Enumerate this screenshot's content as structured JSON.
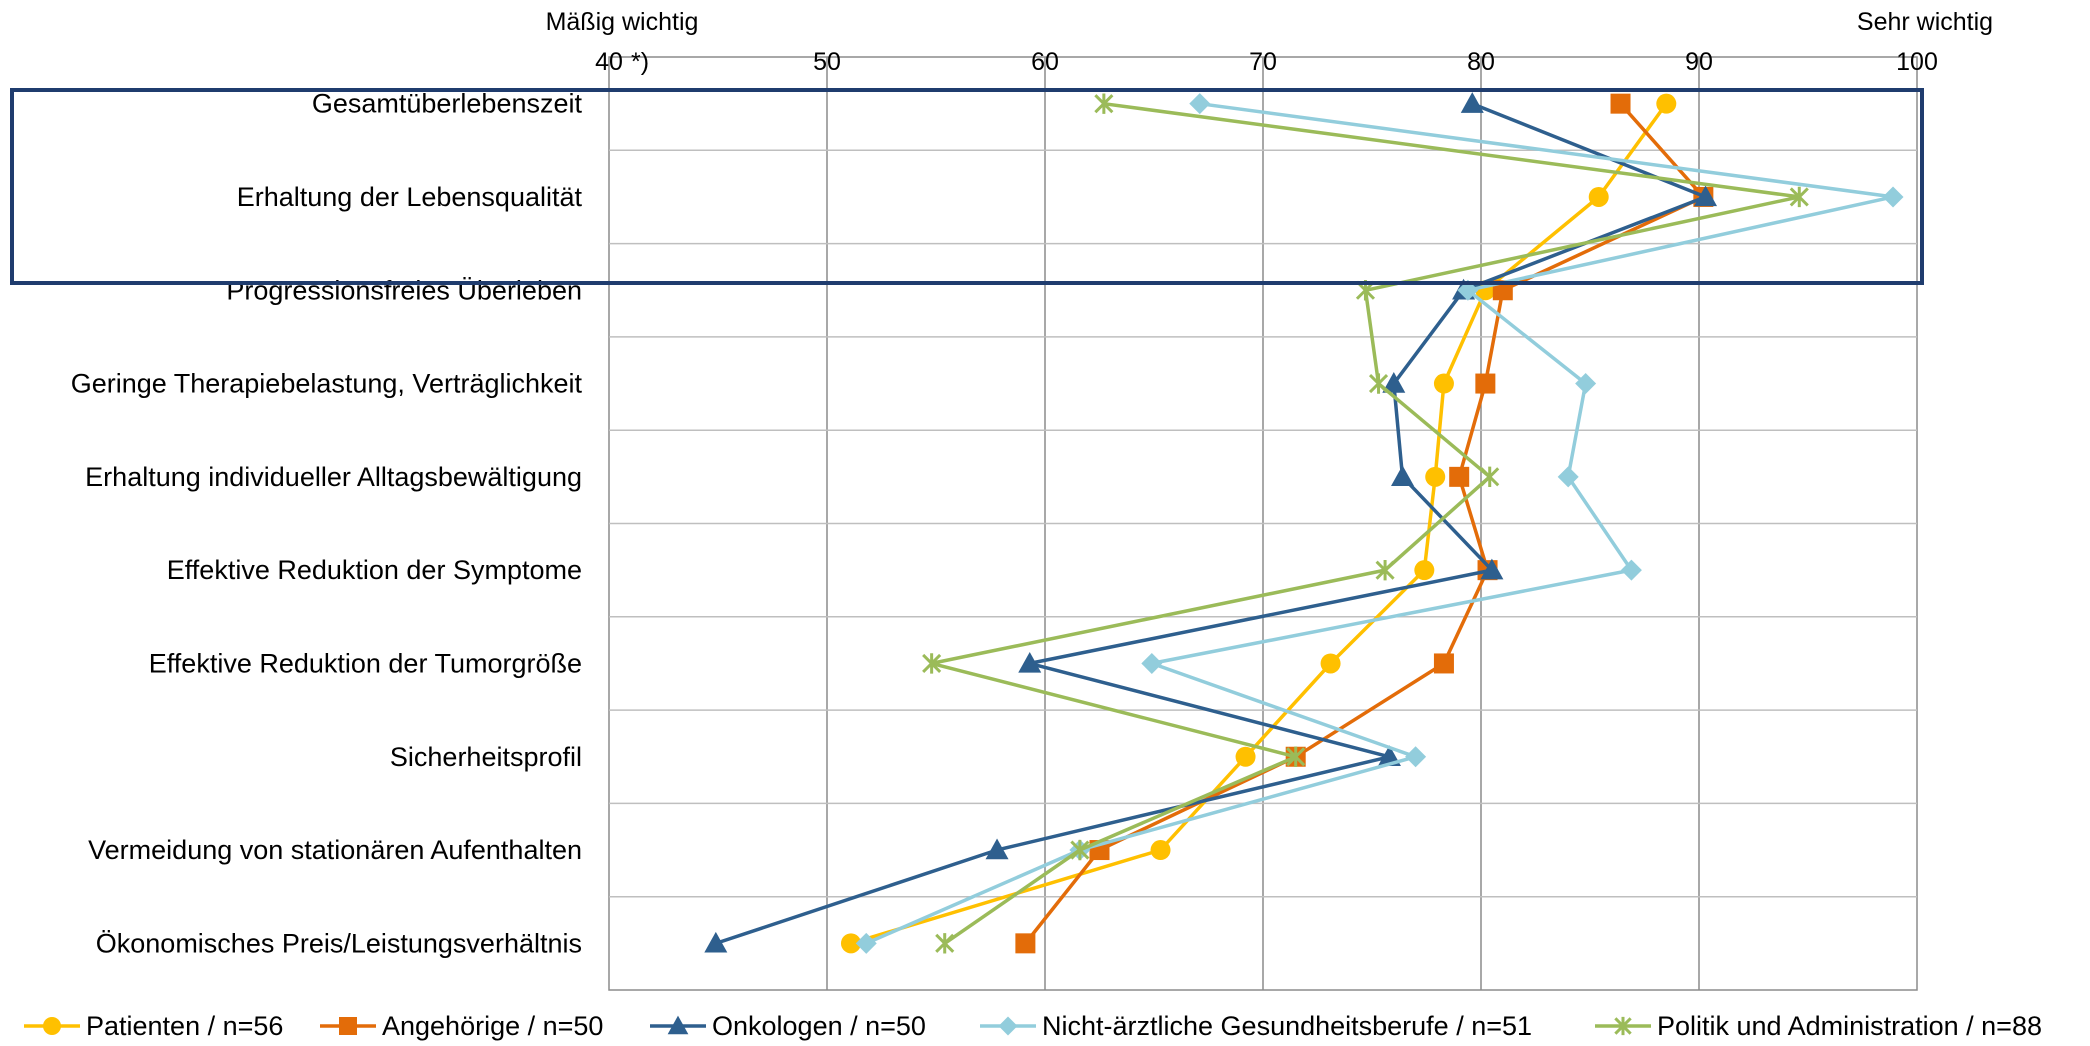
{
  "chart_data": {
    "type": "line",
    "orientation": "horizontal",
    "top_left_label": "Mäßig wichtig",
    "top_right_label": "Sehr wichtig",
    "x_ticks": [
      "40",
      "50",
      "60",
      "70",
      "80",
      "90",
      "100"
    ],
    "x_tick_note": "*)",
    "xlim": [
      40,
      100
    ],
    "grid": true,
    "legend_position": "bottom",
    "categories": [
      "Gesamtüberlebenszeit",
      "Erhaltung der Lebensqualität",
      "Progressionsfreies Überleben",
      "Geringe Therapiebelastung, Verträglichkeit",
      "Erhaltung individueller Alltagsbewältigung",
      "Effektive Reduktion der Symptome",
      "Effektive Reduktion der Tumorgröße",
      "Sicherheitsprofil",
      "Vermeidung von stationären Aufenthalten",
      "Ökonomisches Preis/Leistungsverhältnis"
    ],
    "highlight": {
      "from_index": 0,
      "to_index": 1,
      "color": "#1f3c6e"
    },
    "series": [
      {
        "name": "Patienten / n=56",
        "color": "#FFC000",
        "marker": "circle",
        "values": [
          88.5,
          85.4,
          80.2,
          78.3,
          77.9,
          77.4,
          73.1,
          69.2,
          65.3,
          51.1
        ]
      },
      {
        "name": "Angehörige / n=50",
        "color": "#E36C09",
        "marker": "square",
        "values": [
          86.4,
          90.2,
          81.0,
          80.2,
          79.0,
          80.3,
          78.3,
          71.5,
          62.5,
          59.1
        ]
      },
      {
        "name": "Onkologen / n=50",
        "color": "#2E5F8E",
        "marker": "triangle",
        "values": [
          79.6,
          90.3,
          79.2,
          76.0,
          76.4,
          80.5,
          59.3,
          75.8,
          57.8,
          44.9
        ]
      },
      {
        "name": "Nicht-ärztliche Gesundheitsberufe / n=51",
        "color": "#92CDDC",
        "marker": "diamond",
        "values": [
          67.1,
          98.9,
          79.4,
          84.8,
          84.0,
          86.9,
          64.9,
          77.0,
          61.6,
          51.8
        ]
      },
      {
        "name": "Politik und Administration / n=88",
        "color": "#9BBB59",
        "marker": "asterisk",
        "values": [
          62.7,
          94.6,
          74.7,
          75.3,
          80.4,
          75.6,
          54.8,
          71.5,
          61.6,
          55.4
        ]
      }
    ]
  }
}
